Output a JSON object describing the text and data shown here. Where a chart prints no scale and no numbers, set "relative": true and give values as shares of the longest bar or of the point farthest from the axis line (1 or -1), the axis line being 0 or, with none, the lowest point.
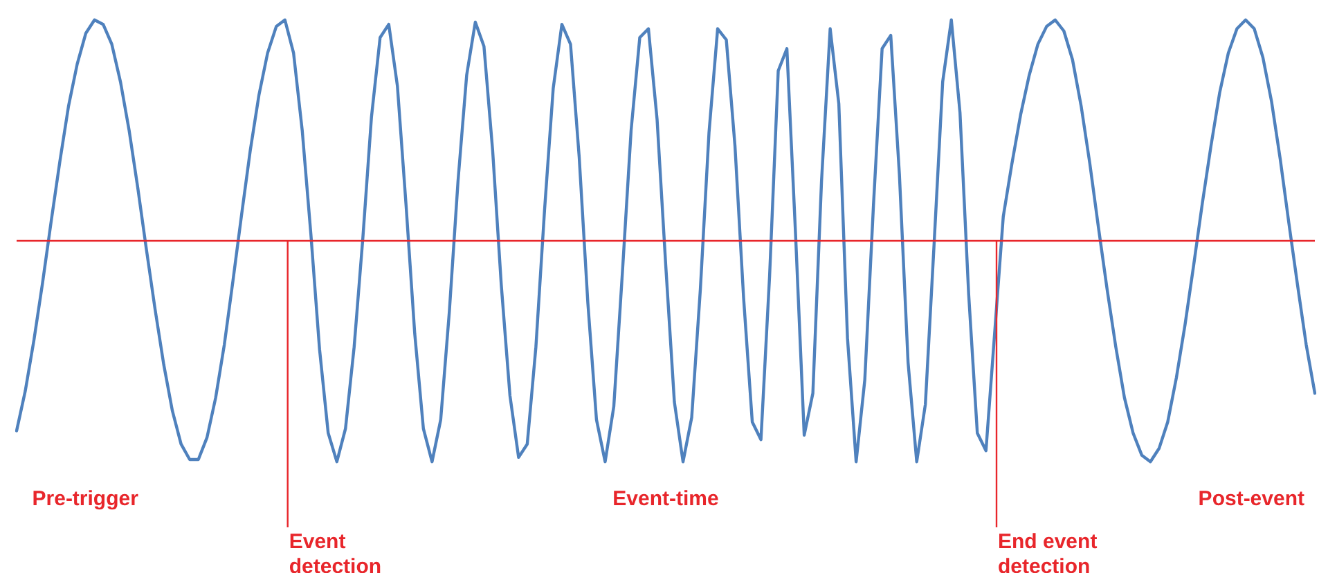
{
  "chart_data": {
    "type": "line",
    "relative": true,
    "grid": false,
    "legend": false,
    "marker": "none",
    "line_style": "solid",
    "categories": [
      null,
      null,
      null,
      null,
      null,
      null,
      null,
      null,
      null,
      null,
      null,
      null,
      null,
      null,
      null,
      null,
      null,
      null,
      null,
      null,
      null,
      null,
      null,
      null,
      null,
      null,
      null,
      null,
      null,
      null,
      null,
      null,
      null,
      null,
      null,
      null,
      null,
      null,
      null,
      null,
      null,
      null,
      null,
      null,
      null,
      null,
      null,
      null,
      null,
      null,
      null,
      null,
      null,
      null,
      null,
      null,
      null,
      null,
      null,
      null,
      null,
      null,
      null,
      null,
      null,
      null,
      null,
      null,
      null,
      null,
      null,
      null,
      null,
      null,
      null,
      null,
      null,
      null,
      null,
      null,
      null,
      null,
      null,
      null,
      null,
      null,
      null,
      null,
      null,
      null,
      null,
      null,
      null,
      null,
      null,
      null,
      null,
      null,
      null,
      null,
      null,
      null,
      null,
      null,
      null,
      null,
      null,
      null,
      null,
      null,
      null,
      null,
      null,
      null,
      null,
      null,
      null,
      null,
      null,
      null,
      null,
      null,
      null,
      null,
      null,
      null,
      null,
      null,
      null,
      null,
      null,
      null,
      null,
      null,
      null,
      null,
      null,
      null,
      null,
      null,
      null,
      null,
      null,
      null,
      null,
      null,
      null,
      null,
      null,
      null,
      null
    ],
    "series": [
      {
        "color": "#4f81bd",
        "values": [
          -0.86,
          -0.68,
          -0.45,
          -0.19,
          0.09,
          0.36,
          0.61,
          0.8,
          0.94,
          1,
          0.98,
          0.89,
          0.72,
          0.5,
          0.24,
          -0.04,
          -0.31,
          -0.56,
          -0.77,
          -0.92,
          -0.99,
          -0.99,
          -0.89,
          -0.71,
          -0.47,
          -0.18,
          0.12,
          0.41,
          0.66,
          0.85,
          0.97,
          1,
          0.85,
          0.5,
          0.03,
          -0.49,
          -0.87,
          -1,
          -0.85,
          -0.48,
          0.01,
          0.56,
          0.92,
          0.98,
          0.7,
          0.16,
          -0.42,
          -0.85,
          -1,
          -0.81,
          -0.32,
          0.27,
          0.75,
          0.99,
          0.88,
          0.41,
          -0.2,
          -0.7,
          -0.98,
          -0.92,
          -0.48,
          0.14,
          0.69,
          0.98,
          0.89,
          0.38,
          -0.28,
          -0.81,
          -1,
          -0.75,
          -0.14,
          0.5,
          0.92,
          0.96,
          0.55,
          -0.11,
          -0.73,
          -1,
          -0.8,
          -0.22,
          0.49,
          0.96,
          0.91,
          0.43,
          -0.26,
          -0.82,
          -0.9,
          -0.16,
          0.77,
          0.87,
          0.03,
          -0.88,
          -0.69,
          0.27,
          0.96,
          0.62,
          -0.44,
          -1,
          -0.63,
          0.16,
          0.87,
          0.93,
          0.3,
          -0.55,
          -1,
          -0.74,
          -0.02,
          0.72,
          1,
          0.58,
          -0.24,
          -0.87,
          -0.95,
          -0.42,
          0.11,
          0.35,
          0.57,
          0.75,
          0.89,
          0.97,
          1,
          0.95,
          0.82,
          0.61,
          0.35,
          0.06,
          -0.22,
          -0.48,
          -0.71,
          -0.87,
          -0.97,
          -1,
          -0.94,
          -0.82,
          -0.62,
          -0.38,
          -0.11,
          0.17,
          0.43,
          0.67,
          0.85,
          0.96,
          1,
          0.96,
          0.83,
          0.63,
          0.37,
          0.08,
          -0.2,
          -0.47,
          -0.69
        ]
      }
    ],
    "ref_lines": [
      {
        "axis": "y",
        "value": 0,
        "color": "#e8262b"
      }
    ],
    "annotations": [
      "Pre-trigger",
      "Event detection",
      "Event-time",
      "End event detection",
      "Post-event"
    ]
  }
}
